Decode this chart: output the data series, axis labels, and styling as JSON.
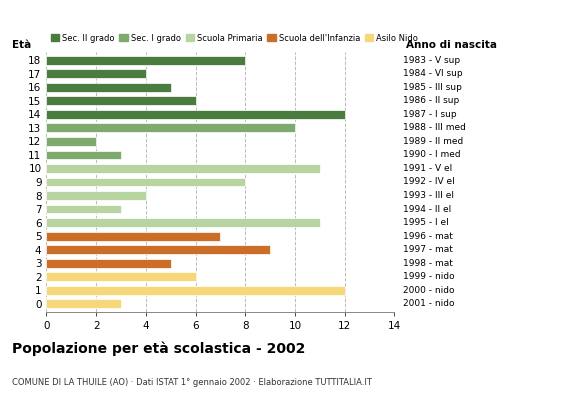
{
  "ages": [
    18,
    17,
    16,
    15,
    14,
    13,
    12,
    11,
    10,
    9,
    8,
    7,
    6,
    5,
    4,
    3,
    2,
    1,
    0
  ],
  "values": [
    8,
    4,
    5,
    6,
    12,
    10,
    2,
    3,
    11,
    8,
    4,
    3,
    11,
    7,
    9,
    5,
    6,
    12,
    3
  ],
  "anno_nascita": [
    "1983 - V sup",
    "1984 - VI sup",
    "1985 - III sup",
    "1986 - II sup",
    "1987 - I sup",
    "1988 - III med",
    "1989 - II med",
    "1990 - I med",
    "1991 - V el",
    "1992 - IV el",
    "1993 - III el",
    "1994 - II el",
    "1995 - I el",
    "1996 - mat",
    "1997 - mat",
    "1998 - mat",
    "1999 - nido",
    "2000 - nido",
    "2001 - nido"
  ],
  "colors_by_age": {
    "18": "#4a7c3f",
    "17": "#4a7c3f",
    "16": "#4a7c3f",
    "15": "#4a7c3f",
    "14": "#4a7c3f",
    "13": "#7faa6e",
    "12": "#7faa6e",
    "11": "#7faa6e",
    "10": "#b8d4a0",
    "9": "#b8d4a0",
    "8": "#b8d4a0",
    "7": "#b8d4a0",
    "6": "#b8d4a0",
    "5": "#cc6e28",
    "4": "#cc6e28",
    "3": "#cc6e28",
    "2": "#f5d87a",
    "1": "#f5d87a",
    "0": "#f5d87a"
  },
  "xlim": [
    0,
    14
  ],
  "xticks": [
    0,
    2,
    4,
    6,
    8,
    10,
    12,
    14
  ],
  "title": "Popolazione per età scolastica - 2002",
  "subtitle": "COMUNE DI LA THUILE (AO) · Dati ISTAT 1° gennaio 2002 · Elaborazione TUTTITALIA.IT",
  "ylabel_left": "Età",
  "ylabel_right": "Anno di nascita",
  "legend_labels": [
    "Sec. II grado",
    "Sec. I grado",
    "Scuola Primaria",
    "Scuola dell'Infanzia",
    "Asilo Nido"
  ],
  "legend_colors": [
    "#4a7c3f",
    "#7faa6e",
    "#b8d4a0",
    "#cc6e28",
    "#f5d87a"
  ],
  "bar_height": 0.65,
  "background_color": "#ffffff",
  "grid_color": "#bbbbbb"
}
